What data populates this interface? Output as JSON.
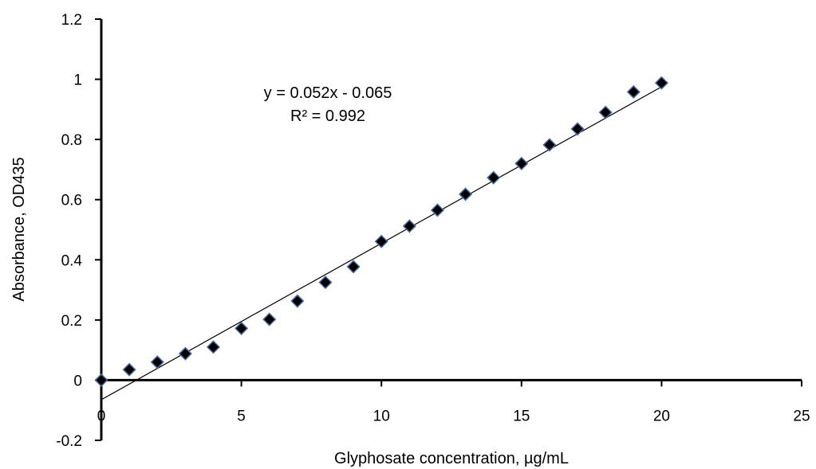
{
  "chart_data": {
    "type": "scatter",
    "title": "",
    "xlabel": "Glyphosate concentration, µg/mL",
    "ylabel": "Absorbance, OD435",
    "xlim": [
      0,
      25
    ],
    "ylim": [
      -0.2,
      1.2
    ],
    "x_ticks": [
      0,
      5,
      10,
      15,
      20,
      25
    ],
    "y_ticks": [
      -0.2,
      0,
      0.2,
      0.4,
      0.6,
      0.8,
      1,
      1.2
    ],
    "x_tick_labels": [
      "0",
      "5",
      "10",
      "15",
      "20",
      "25"
    ],
    "y_tick_labels": [
      "-0.2",
      "0",
      "0.2",
      "0.4",
      "0.6",
      "0.8",
      "1",
      "1.2"
    ],
    "grid": false,
    "legend": "none",
    "series": [
      {
        "x": [
          0,
          1,
          2,
          3,
          4,
          5,
          6,
          7,
          8,
          9,
          10,
          11,
          12,
          13,
          14,
          15,
          16,
          17,
          18,
          19,
          20
        ],
        "y": [
          0,
          0.035,
          0.06,
          0.088,
          0.11,
          0.172,
          0.202,
          0.263,
          0.325,
          0.377,
          0.461,
          0.512,
          0.565,
          0.618,
          0.673,
          0.72,
          0.782,
          0.835,
          0.89,
          0.958,
          0.988
        ],
        "marker": "diamond",
        "marker_color": "#000000",
        "marker_edge_color": "#4a6aa0"
      }
    ],
    "trendline": {
      "type": "linear",
      "slope": 0.052,
      "intercept": -0.065,
      "x_range": [
        0,
        20
      ],
      "equation": "y = 0.052x - 0.065",
      "r_squared": "R² = 0.992",
      "color": "#000000"
    }
  }
}
